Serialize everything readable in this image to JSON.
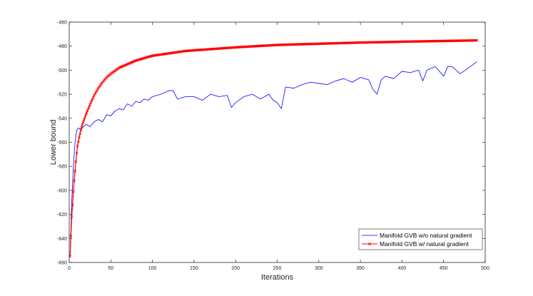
{
  "chart_data": {
    "type": "line",
    "xlabel": "Iterations",
    "ylabel": "Lower bound",
    "xlim": [
      0,
      500
    ],
    "ylim": [
      -660,
      -460
    ],
    "xticks": [
      0,
      50,
      100,
      150,
      200,
      250,
      300,
      350,
      400,
      450,
      500
    ],
    "yticks": [
      -460,
      -480,
      -500,
      -520,
      -540,
      -560,
      -580,
      -600,
      -620,
      -640,
      -660
    ],
    "grid": false,
    "legend_position": "bottom-right",
    "series": [
      {
        "name": "Manifold GVB w/o natural gradient",
        "color": "#0000ff",
        "marker": "none",
        "x": [
          1,
          3,
          5,
          7,
          9,
          11,
          13,
          16,
          20,
          25,
          30,
          35,
          40,
          45,
          50,
          55,
          60,
          65,
          70,
          75,
          80,
          85,
          90,
          95,
          100,
          110,
          120,
          125,
          130,
          140,
          150,
          160,
          170,
          180,
          190,
          195,
          200,
          210,
          220,
          230,
          240,
          245,
          250,
          255,
          260,
          270,
          280,
          290,
          300,
          310,
          320,
          330,
          340,
          350,
          360,
          365,
          370,
          375,
          380,
          390,
          400,
          410,
          420,
          425,
          430,
          440,
          450,
          455,
          460,
          470,
          480,
          490
        ],
        "y": [
          -655,
          -610,
          -580,
          -560,
          -550,
          -548,
          -549,
          -548,
          -545,
          -547,
          -543,
          -541,
          -543,
          -537,
          -538,
          -534,
          -532,
          -533,
          -528,
          -530,
          -526,
          -527,
          -524,
          -525,
          -522,
          -520,
          -517,
          -517,
          -524,
          -522,
          -522,
          -525,
          -520,
          -522,
          -521,
          -531,
          -527,
          -522,
          -520,
          -524,
          -520,
          -525,
          -527,
          -532,
          -514,
          -515,
          -512,
          -510,
          -511,
          -512,
          -509,
          -507,
          -510,
          -506,
          -508,
          -516,
          -520,
          -508,
          -505,
          -507,
          -501,
          -502,
          -500,
          -509,
          -500,
          -497,
          -505,
          -497,
          -497,
          -503,
          -498,
          -493
        ]
      },
      {
        "name": "Manifold GVB w/ natural gradient",
        "color": "#ff0000",
        "marker": "x",
        "x": [
          1,
          2,
          3,
          4,
          5,
          6,
          7,
          8,
          9,
          10,
          12,
          14,
          16,
          18,
          20,
          23,
          26,
          30,
          35,
          40,
          45,
          50,
          60,
          70,
          80,
          90,
          100,
          120,
          140,
          160,
          180,
          200,
          225,
          250,
          275,
          300,
          325,
          350,
          375,
          400,
          425,
          450,
          475,
          490
        ],
        "y": [
          -655,
          -638,
          -622,
          -612,
          -601,
          -592,
          -584,
          -576,
          -569,
          -563,
          -556,
          -550,
          -545,
          -541,
          -537,
          -532,
          -527,
          -521,
          -515,
          -510,
          -506,
          -503,
          -498,
          -495,
          -492,
          -490,
          -488,
          -486,
          -484,
          -483,
          -482,
          -481,
          -480,
          -479,
          -478.5,
          -478,
          -477.5,
          -477,
          -476.7,
          -476.3,
          -476,
          -475.7,
          -475.4,
          -475.2
        ]
      }
    ]
  }
}
